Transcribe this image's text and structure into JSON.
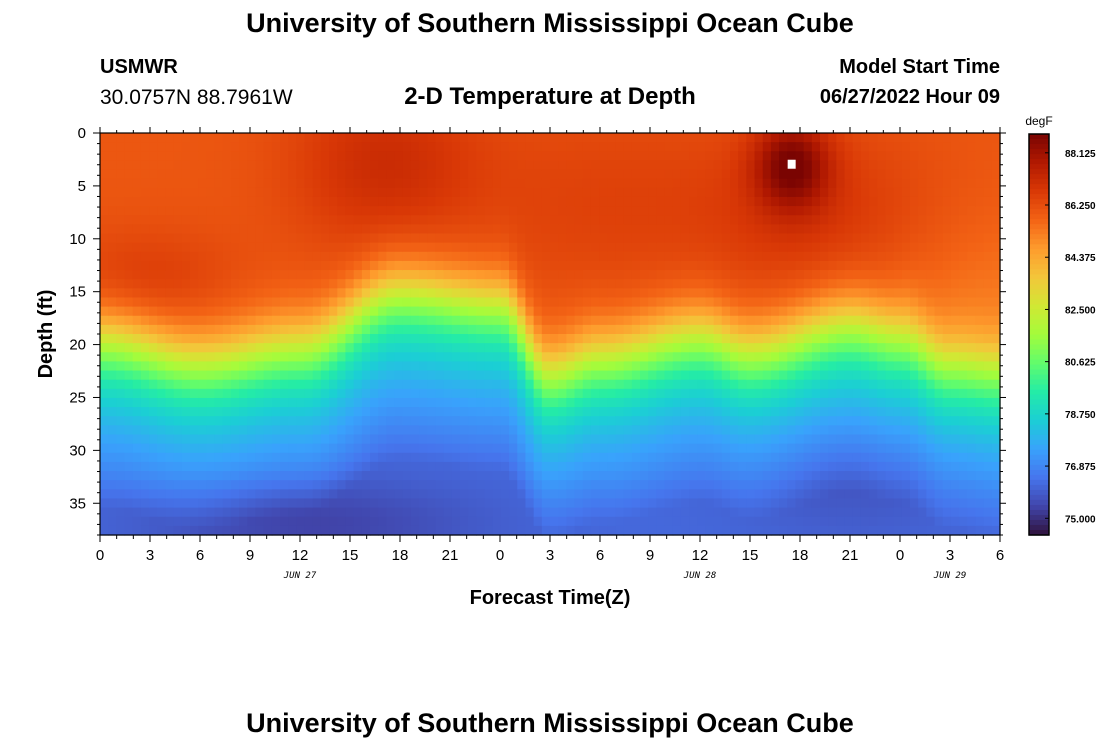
{
  "page": {
    "title": "University of Southern Mississippi Ocean Cube",
    "footer_title": "University of Southern Mississippi Ocean Cube",
    "station": "USMWR",
    "coordinates": "30.0757N  88.7961W",
    "subtitle": "2-D Temperature at Depth",
    "model_start_label": "Model Start Time",
    "model_start_value": "06/27/2022 Hour 09"
  },
  "chart_data": {
    "type": "heatmap",
    "title": "2-D Temperature at Depth",
    "xlabel": "Forecast Time(Z)",
    "ylabel": "Depth (ft)",
    "x_range_hours": [
      0,
      54
    ],
    "x_ticks": [
      "0",
      "3",
      "6",
      "9",
      "12",
      "15",
      "18",
      "21",
      "0",
      "3",
      "6",
      "9",
      "12",
      "15",
      "18",
      "21",
      "0",
      "3",
      "6"
    ],
    "date_labels": [
      {
        "label": "JUN 27",
        "hour": 12
      },
      {
        "label": "JUN 28",
        "hour": 36
      },
      {
        "label": "JUN 29",
        "hour": 51
      }
    ],
    "y_range_ft": [
      0,
      38
    ],
    "y_ticks": [
      0,
      5,
      10,
      15,
      20,
      25,
      30,
      35
    ],
    "colorbar": {
      "unit": "degF",
      "min": 74.4,
      "max": 88.8,
      "labels": [
        "88.125",
        "86.250",
        "84.375",
        "82.500",
        "80.625",
        "78.750",
        "76.875",
        "75.000"
      ],
      "colors": [
        "#30123b",
        "#4145ab",
        "#4675ed",
        "#39a2fc",
        "#1bcfd4",
        "#24eca6",
        "#61fc6c",
        "#a4fc3b",
        "#d1e834",
        "#f3c63a",
        "#fe9b2d",
        "#f36315",
        "#d93806",
        "#b11901",
        "#7a0402"
      ]
    },
    "marker": {
      "hour": 41.5,
      "depth_ft": 3
    },
    "thermocline_profile": [
      {
        "hour": 0,
        "depth_ft": 19.5
      },
      {
        "hour": 6,
        "depth_ft": 21.5
      },
      {
        "hour": 12,
        "depth_ft": 20
      },
      {
        "hour": 18,
        "depth_ft": 15
      },
      {
        "hour": 24,
        "depth_ft": 16
      },
      {
        "hour": 27,
        "depth_ft": 22.5
      },
      {
        "hour": 30,
        "depth_ft": 21
      },
      {
        "hour": 36,
        "depth_ft": 19
      },
      {
        "hour": 39,
        "depth_ft": 20.5
      },
      {
        "hour": 45,
        "depth_ft": 18
      },
      {
        "hour": 48,
        "depth_ft": 19
      },
      {
        "hour": 51,
        "depth_ft": 21.5
      },
      {
        "hour": 54,
        "depth_ft": 22
      }
    ],
    "surface_max_degF": 88.6,
    "bottom_min_degF": 74.8
  }
}
